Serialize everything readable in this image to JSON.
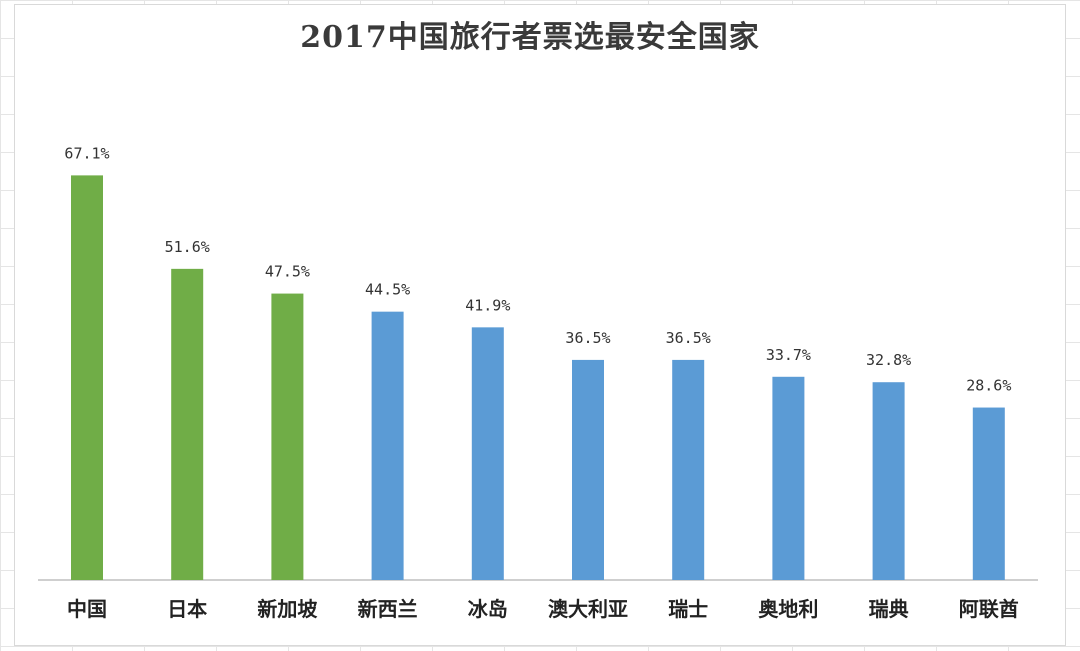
{
  "chart_data": {
    "type": "bar",
    "title": "2017中国旅行者票选最安全国家",
    "xlabel": "",
    "ylabel": "",
    "ylim": [
      0,
      80
    ],
    "grid": false,
    "legend": "none",
    "categories": [
      "中国",
      "日本",
      "新加坡",
      "新西兰",
      "冰岛",
      "澳大利亚",
      "瑞士",
      "奥地利",
      "瑞典",
      "阿联酋"
    ],
    "values": [
      67.1,
      51.6,
      47.5,
      44.5,
      41.9,
      36.5,
      36.5,
      33.7,
      32.8,
      28.6
    ],
    "data_labels": [
      "67.1%",
      "51.6%",
      "47.5%",
      "44.5%",
      "41.9%",
      "36.5%",
      "36.5%",
      "33.7%",
      "32.8%",
      "28.6%"
    ],
    "bar_colors": [
      "#70ad47",
      "#70ad47",
      "#70ad47",
      "#5b9bd5",
      "#5b9bd5",
      "#5b9bd5",
      "#5b9bd5",
      "#5b9bd5",
      "#5b9bd5",
      "#5b9bd5"
    ]
  }
}
